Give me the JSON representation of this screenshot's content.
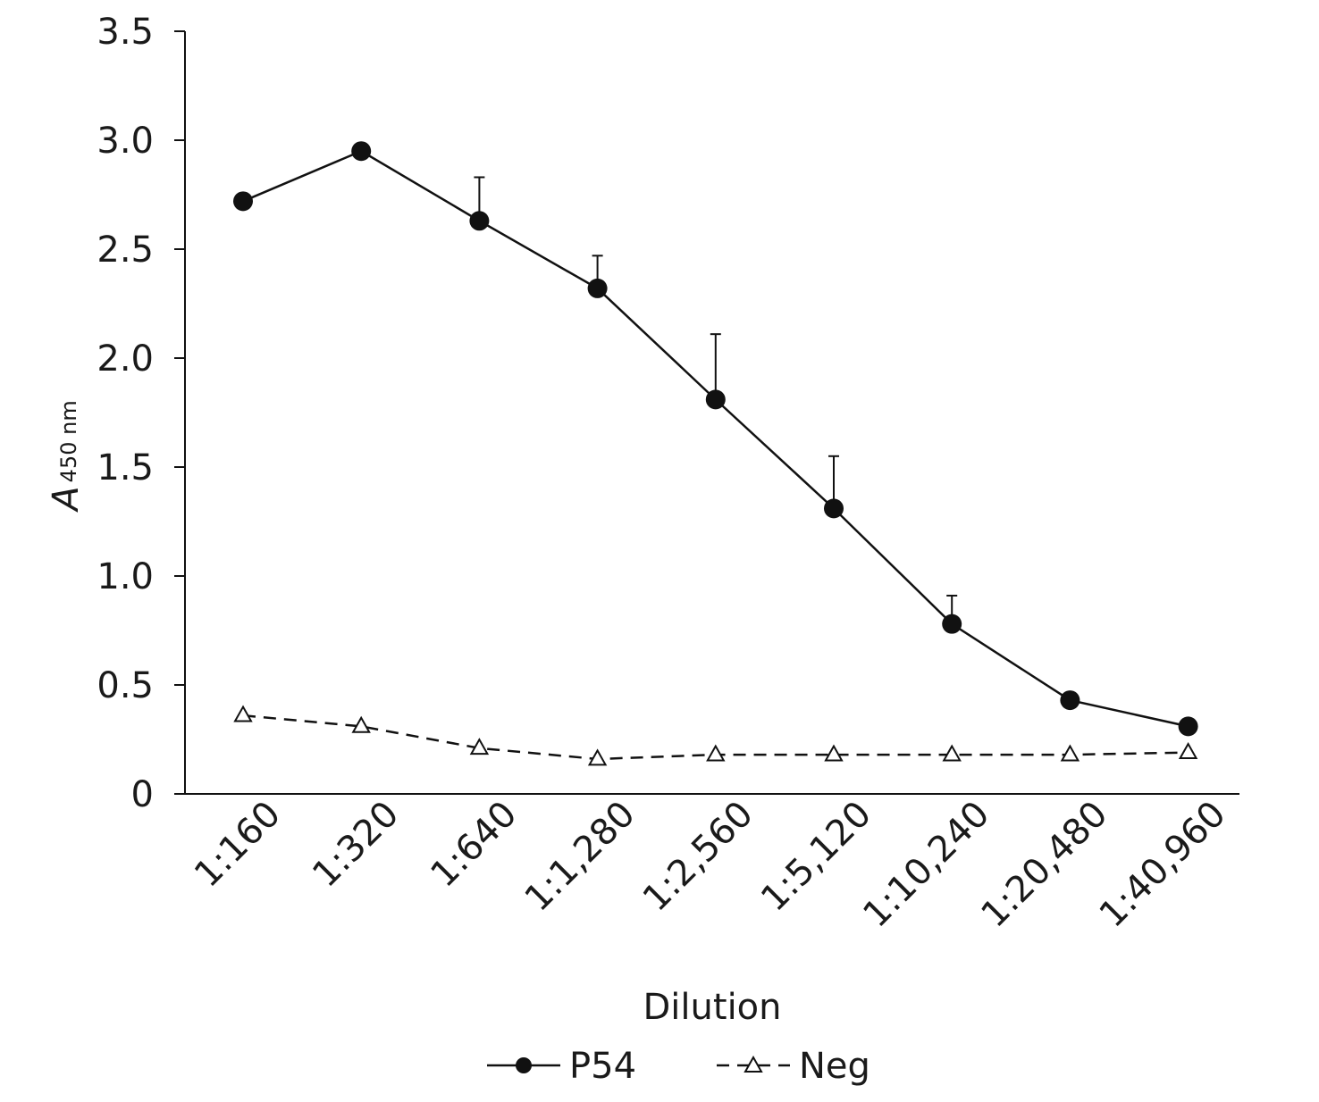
{
  "chart_data": {
    "type": "line",
    "title": "",
    "xlabel": "Dilution",
    "ylabel_main": "A",
    "ylabel_sub": "450 nm",
    "categories": [
      "1:160",
      "1:320",
      "1:640",
      "1:1,280",
      "1:2,560",
      "1:5,120",
      "1:10,240",
      "1:20,480",
      "1:40,960"
    ],
    "y_ticks": [
      {
        "value": 0,
        "label": "0"
      },
      {
        "value": 0.5,
        "label": "0.5"
      },
      {
        "value": 1.0,
        "label": "1.0"
      },
      {
        "value": 1.5,
        "label": "1.5"
      },
      {
        "value": 2.0,
        "label": "2.0"
      },
      {
        "value": 2.5,
        "label": "2.5"
      },
      {
        "value": 3.0,
        "label": "3.0"
      },
      {
        "value": 3.5,
        "label": "3.5"
      }
    ],
    "ylim": [
      0,
      3.5
    ],
    "grid": false,
    "legend_position": "bottom",
    "series": [
      {
        "name": "P54",
        "marker": "filled-circle",
        "line_style": "solid",
        "color": "#111111",
        "values": [
          2.72,
          2.95,
          2.63,
          2.32,
          1.81,
          1.31,
          0.78,
          0.43,
          0.31
        ],
        "error_upper": [
          0,
          0,
          0.2,
          0.15,
          0.3,
          0.24,
          0.13,
          0,
          0
        ]
      },
      {
        "name": "Neg",
        "marker": "open-triangle",
        "line_style": "dashed",
        "color": "#111111",
        "values": [
          0.36,
          0.31,
          0.21,
          0.16,
          0.18,
          0.18,
          0.18,
          0.18,
          0.19
        ]
      }
    ]
  }
}
